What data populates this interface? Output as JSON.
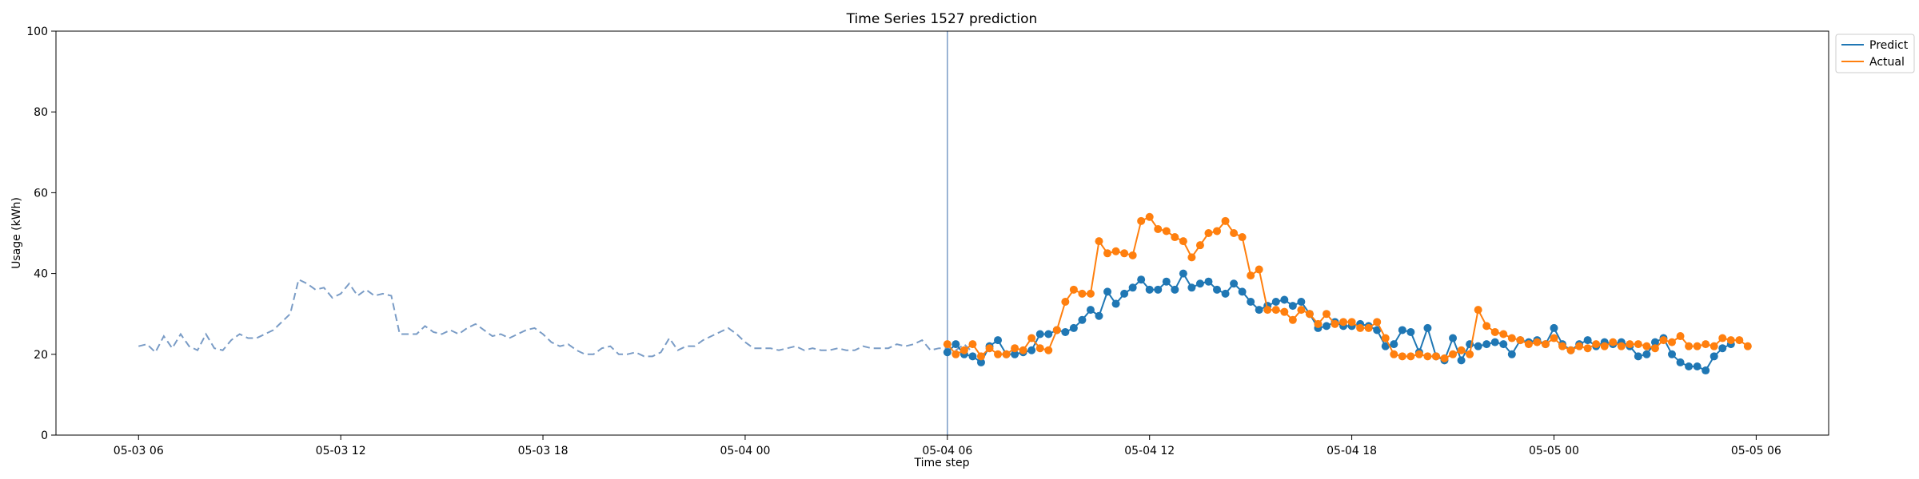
{
  "chart_data": {
    "type": "line",
    "title": "Time Series 1527 prediction",
    "xlabel": "Time step",
    "ylabel": "Usage (kWh)",
    "ylim": [
      0,
      100
    ],
    "yticks": [
      0,
      20,
      40,
      60,
      80,
      100
    ],
    "xlim_hours": [
      -2.45,
      50.15
    ],
    "xticks": [
      {
        "hour": 0,
        "label": "05-03 06"
      },
      {
        "hour": 6,
        "label": "05-03 12"
      },
      {
        "hour": 12,
        "label": "05-03 18"
      },
      {
        "hour": 18,
        "label": "05-04 00"
      },
      {
        "hour": 24,
        "label": "05-04 06"
      },
      {
        "hour": 30,
        "label": "05-04 12"
      },
      {
        "hour": 36,
        "label": "05-04 18"
      },
      {
        "hour": 42,
        "label": "05-05 00"
      },
      {
        "hour": 48,
        "label": "05-05 06"
      }
    ],
    "x_unit": "hours since 05-03 06:00",
    "step_hours": 0.25,
    "forecast_start_hour": 24,
    "grid": false,
    "legend_position": "upper-right-outside",
    "history": {
      "start_hour": 0,
      "color": "#7a9cc6",
      "style": "dashed",
      "values": [
        22,
        22.5,
        20.5,
        24.5,
        21.5,
        25,
        22,
        21,
        25,
        21.5,
        21,
        23.5,
        25,
        24,
        24,
        25,
        26,
        28,
        30,
        38.5,
        37.5,
        36,
        36.5,
        34,
        35,
        37.5,
        34.5,
        36,
        34.5,
        35,
        34.5,
        25,
        25,
        25,
        27,
        25.5,
        25,
        26,
        25,
        26.5,
        27.5,
        26,
        24.5,
        25,
        24,
        25,
        26,
        26.5,
        25,
        23,
        22,
        22.5,
        21,
        20,
        20,
        21.5,
        22,
        20,
        20,
        20.5,
        19.5,
        19.5,
        20.5,
        24,
        21,
        22,
        22,
        23.5,
        24.5,
        25.5,
        26.5,
        25,
        23,
        21.5,
        21.5,
        21.5,
        21,
        21.5,
        22,
        21,
        21.5,
        21,
        21,
        21.5,
        21,
        21,
        22,
        21.5,
        21.5,
        21.5,
        22.5,
        22,
        22.5,
        23.5,
        21,
        21.5,
        21.5,
        21,
        22.5,
        20.5
      ]
    },
    "series": [
      {
        "name": "Predict",
        "color": "#1f77b4",
        "start_hour": 24,
        "values": [
          20.5,
          22.5,
          20,
          19.5,
          18,
          22,
          23.5,
          20,
          20,
          20.5,
          21,
          25,
          25,
          26,
          25.5,
          26.5,
          28.5,
          31,
          29.5,
          35.5,
          32.5,
          35,
          36.5,
          38.5,
          36,
          36,
          38,
          36,
          40,
          36.5,
          37.5,
          38,
          36,
          35,
          37.5,
          35.5,
          33,
          31,
          32,
          33,
          33.5,
          32,
          33,
          30,
          26.5,
          27,
          28,
          27,
          27,
          27.5,
          27,
          26,
          22,
          22.5,
          26,
          25.5,
          20.5,
          26.5,
          19.5,
          18.5,
          24,
          18.5,
          22.5,
          22,
          22.5,
          23,
          22.5,
          20,
          23.5,
          23,
          23.5,
          22.5,
          26.5,
          22.5,
          21,
          22.5,
          23.5,
          22,
          23,
          22.5,
          23,
          22,
          19.5,
          20,
          23,
          24,
          20,
          18,
          17,
          17,
          16,
          19.5,
          21.5,
          22.5
        ]
      },
      {
        "name": "Actual",
        "color": "#ff7f0e",
        "start_hour": 24,
        "values": [
          22.5,
          20,
          21,
          22.5,
          19.5,
          21.5,
          20,
          20,
          21.5,
          21,
          24,
          21.5,
          21,
          26,
          33,
          36,
          35,
          35,
          48,
          45,
          45.5,
          45,
          44.5,
          53,
          54,
          51,
          50.5,
          49,
          48,
          44,
          47,
          50,
          50.5,
          53,
          50,
          49,
          39.5,
          41,
          31,
          31,
          30.5,
          28.5,
          31,
          30,
          27.5,
          30,
          27.5,
          28,
          28,
          26.5,
          26.5,
          28,
          24,
          20,
          19.5,
          19.5,
          20,
          19.5,
          19.5,
          19,
          20,
          21,
          20,
          31,
          27,
          25.5,
          25,
          24,
          23.5,
          22.5,
          23,
          22.5,
          24,
          22,
          21,
          22,
          21.5,
          22.5,
          22,
          23,
          22,
          22.5,
          22.5,
          22,
          21.5,
          23.5,
          23,
          24.5,
          22,
          22,
          22.5,
          22,
          24,
          23.5,
          23.5,
          22
        ]
      }
    ]
  }
}
